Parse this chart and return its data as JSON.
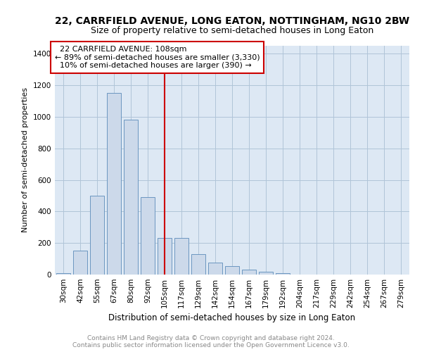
{
  "title1": "22, CARRFIELD AVENUE, LONG EATON, NOTTINGHAM, NG10 2BW",
  "title2": "Size of property relative to semi-detached houses in Long Eaton",
  "xlabel": "Distribution of semi-detached houses by size in Long Eaton",
  "ylabel": "Number of semi-detached properties",
  "footer1": "Contains HM Land Registry data © Crown copyright and database right 2024.",
  "footer2": "Contains public sector information licensed under the Open Government Licence v3.0.",
  "bar_labels": [
    "30sqm",
    "42sqm",
    "55sqm",
    "67sqm",
    "80sqm",
    "92sqm",
    "105sqm",
    "117sqm",
    "129sqm",
    "142sqm",
    "154sqm",
    "167sqm",
    "179sqm",
    "192sqm",
    "204sqm",
    "217sqm",
    "229sqm",
    "242sqm",
    "254sqm",
    "267sqm",
    "279sqm"
  ],
  "bar_values": [
    10,
    150,
    500,
    1150,
    980,
    490,
    230,
    230,
    130,
    75,
    55,
    30,
    20,
    8,
    0,
    0,
    0,
    0,
    0,
    0,
    0
  ],
  "bar_color": "#ccd9ea",
  "bar_edge_color": "#6b96c0",
  "property_label": "22 CARRFIELD AVENUE: 108sqm",
  "smaller_pct": 89,
  "smaller_count": 3330,
  "larger_pct": 10,
  "larger_count": 390,
  "vline_color": "#cc0000",
  "vline_x_bar_index": 6.0,
  "annotation_box_color": "#cc0000",
  "ylim": [
    0,
    1450
  ],
  "yticks": [
    0,
    200,
    400,
    600,
    800,
    1000,
    1200,
    1400
  ],
  "bg_color": "#dde8f4",
  "grid_color": "#b0c4d8",
  "title1_fontsize": 10,
  "title2_fontsize": 9,
  "xlabel_fontsize": 8.5,
  "ylabel_fontsize": 8,
  "tick_fontsize": 7.5,
  "footer_fontsize": 6.5,
  "annotation_fontsize": 8
}
